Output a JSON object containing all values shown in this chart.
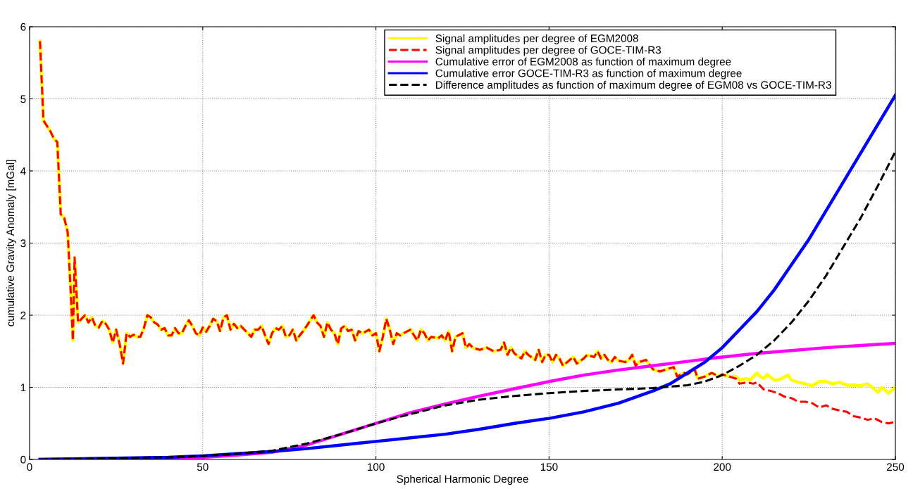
{
  "chart_data": {
    "type": "line",
    "xlabel": "Spherical Harmonic Degree",
    "ylabel": "cumulative Gravity Anomaly [mGal]",
    "xlim": [
      0,
      250
    ],
    "xticks": [
      0,
      50,
      100,
      150,
      200,
      250
    ],
    "ylim": [
      0,
      6
    ],
    "yticks": [
      0,
      1,
      2,
      3,
      4,
      5,
      6
    ],
    "grid": true,
    "legend": "top right",
    "marker": "none",
    "series": [
      {
        "name": "Signal amplitudes per degree of EGM2008",
        "color": "#ffff00",
        "line_style": "solid",
        "x": [
          3,
          4,
          6,
          7,
          8,
          9,
          10,
          11,
          12,
          12.5,
          13,
          14,
          15,
          16,
          17,
          18,
          19,
          20,
          21,
          22,
          23,
          24,
          25,
          26,
          27,
          28,
          29,
          30,
          31,
          32,
          33,
          34,
          35,
          36,
          37,
          38,
          39,
          40,
          41,
          42,
          43,
          44,
          45,
          46,
          47,
          48,
          49,
          50,
          51,
          52,
          53,
          54,
          55,
          56,
          57,
          58,
          59,
          60,
          61,
          62,
          63,
          64,
          65,
          66,
          67,
          68,
          69,
          70,
          71,
          72,
          73,
          74,
          75,
          76,
          77,
          78,
          79,
          80,
          82,
          83,
          84,
          85,
          86,
          87,
          88,
          89,
          90,
          91,
          92,
          93,
          94,
          95,
          96,
          97,
          98,
          99,
          100,
          101,
          102,
          103,
          104,
          105,
          106,
          107,
          108,
          110,
          111,
          112,
          113,
          114,
          115,
          116,
          118,
          119,
          120,
          121,
          122,
          123,
          125,
          126,
          127,
          128,
          130,
          132,
          134,
          136,
          137,
          138,
          139,
          140,
          142,
          143,
          144,
          146,
          147,
          148,
          149,
          150,
          151,
          152,
          153,
          154,
          156,
          157,
          158,
          160,
          161,
          163,
          164,
          165,
          166,
          167,
          168,
          169,
          170,
          172,
          173,
          174,
          175,
          176,
          178,
          180,
          182,
          184,
          186,
          187,
          189,
          190,
          192,
          193,
          195,
          197,
          199,
          200,
          202,
          204,
          205,
          207,
          208,
          210,
          211,
          212,
          213,
          215,
          216,
          217,
          219,
          220,
          222,
          224,
          226,
          228,
          230,
          232,
          234,
          236,
          238,
          240,
          242,
          244,
          245,
          246,
          248,
          250
        ],
        "values": [
          5.8,
          4.7,
          4.55,
          4.45,
          4.4,
          3.4,
          3.35,
          3.15,
          2.2,
          1.65,
          2.8,
          1.9,
          1.95,
          2.0,
          1.9,
          1.97,
          1.85,
          1.83,
          1.92,
          1.88,
          1.8,
          1.62,
          1.8,
          1.6,
          1.33,
          1.75,
          1.7,
          1.73,
          1.7,
          1.7,
          1.82,
          2.0,
          1.97,
          1.9,
          1.87,
          1.8,
          1.82,
          1.72,
          1.72,
          1.82,
          1.75,
          1.75,
          1.85,
          1.93,
          1.85,
          1.75,
          1.72,
          1.83,
          1.77,
          1.85,
          1.95,
          1.92,
          1.78,
          1.97,
          2.0,
          1.8,
          1.88,
          1.82,
          1.85,
          1.8,
          1.75,
          1.7,
          1.8,
          1.8,
          1.85,
          1.72,
          1.6,
          1.75,
          1.82,
          1.8,
          1.85,
          1.7,
          1.72,
          1.8,
          1.65,
          1.72,
          1.78,
          1.85,
          2.0,
          1.9,
          1.85,
          1.7,
          1.9,
          1.8,
          1.75,
          1.6,
          1.82,
          1.85,
          1.78,
          1.8,
          1.65,
          1.78,
          1.75,
          1.77,
          1.8,
          1.72,
          1.75,
          1.5,
          1.7,
          1.95,
          1.8,
          1.6,
          1.75,
          1.72,
          1.75,
          1.8,
          1.72,
          1.65,
          1.8,
          1.75,
          1.65,
          1.7,
          1.68,
          1.72,
          1.65,
          1.78,
          1.5,
          1.7,
          1.75,
          1.55,
          1.6,
          1.55,
          1.52,
          1.55,
          1.5,
          1.52,
          1.62,
          1.45,
          1.55,
          1.47,
          1.4,
          1.5,
          1.45,
          1.38,
          1.52,
          1.35,
          1.45,
          1.45,
          1.35,
          1.45,
          1.4,
          1.3,
          1.38,
          1.42,
          1.33,
          1.4,
          1.45,
          1.42,
          1.5,
          1.4,
          1.45,
          1.38,
          1.35,
          1.42,
          1.37,
          1.35,
          1.38,
          1.45,
          1.3,
          1.35,
          1.38,
          1.25,
          1.22,
          1.25,
          1.28,
          1.15,
          1.2,
          1.18,
          1.25,
          1.12,
          1.15,
          1.2,
          1.15,
          1.18,
          1.15,
          1.15,
          1.1,
          1.12,
          1.1,
          1.2,
          1.15,
          1.12,
          1.18,
          1.1,
          1.1,
          1.12,
          1.17,
          1.1,
          1.07,
          1.05,
          1.02,
          1.08,
          1.08,
          1.05,
          1.07,
          1.03,
          1.03,
          1.02,
          1.05,
          0.97,
          0.93,
          1.0,
          0.92,
          1.0
        ]
      },
      {
        "name": "Signal amplitudes per degree of GOCE-TIM-R3",
        "color": "#ff0000",
        "line_style": "dashed",
        "x": [
          3,
          4,
          6,
          7,
          8,
          9,
          10,
          11,
          12,
          12.5,
          13,
          14,
          15,
          16,
          17,
          18,
          19,
          20,
          21,
          22,
          23,
          24,
          25,
          26,
          27,
          28,
          29,
          30,
          31,
          32,
          33,
          34,
          35,
          36,
          37,
          38,
          39,
          40,
          41,
          42,
          43,
          44,
          45,
          46,
          47,
          48,
          49,
          50,
          51,
          52,
          53,
          54,
          55,
          56,
          57,
          58,
          59,
          60,
          61,
          62,
          63,
          64,
          65,
          66,
          67,
          68,
          69,
          70,
          71,
          72,
          73,
          74,
          75,
          76,
          77,
          78,
          79,
          80,
          82,
          83,
          84,
          85,
          86,
          87,
          88,
          89,
          90,
          91,
          92,
          93,
          94,
          95,
          96,
          97,
          98,
          99,
          100,
          101,
          102,
          103,
          104,
          105,
          106,
          107,
          108,
          110,
          111,
          112,
          113,
          114,
          115,
          116,
          118,
          119,
          120,
          121,
          122,
          123,
          125,
          126,
          127,
          128,
          130,
          132,
          134,
          136,
          137,
          138,
          139,
          140,
          142,
          143,
          144,
          146,
          147,
          148,
          149,
          150,
          151,
          152,
          153,
          154,
          156,
          157,
          158,
          160,
          161,
          163,
          164,
          165,
          166,
          167,
          168,
          169,
          170,
          172,
          173,
          174,
          175,
          176,
          178,
          180,
          182,
          184,
          186,
          187,
          189,
          190,
          192,
          193,
          195,
          197,
          199,
          200,
          202,
          204,
          205,
          207,
          209,
          210,
          212,
          214,
          216,
          218,
          220,
          222,
          224,
          226,
          228,
          230,
          232,
          234,
          236,
          238,
          240,
          242,
          244,
          246,
          248,
          250
        ],
        "values": [
          5.8,
          4.7,
          4.55,
          4.45,
          4.4,
          3.4,
          3.35,
          3.15,
          2.2,
          1.65,
          2.8,
          1.9,
          1.95,
          2.0,
          1.9,
          1.97,
          1.85,
          1.83,
          1.92,
          1.88,
          1.8,
          1.62,
          1.8,
          1.6,
          1.33,
          1.75,
          1.7,
          1.73,
          1.7,
          1.7,
          1.82,
          2.0,
          1.97,
          1.9,
          1.87,
          1.8,
          1.82,
          1.72,
          1.72,
          1.82,
          1.75,
          1.75,
          1.85,
          1.93,
          1.85,
          1.75,
          1.72,
          1.83,
          1.77,
          1.85,
          1.95,
          1.92,
          1.78,
          1.97,
          2.0,
          1.8,
          1.88,
          1.82,
          1.85,
          1.8,
          1.75,
          1.7,
          1.8,
          1.8,
          1.85,
          1.72,
          1.6,
          1.75,
          1.82,
          1.8,
          1.85,
          1.7,
          1.72,
          1.8,
          1.65,
          1.72,
          1.78,
          1.85,
          2.0,
          1.9,
          1.85,
          1.7,
          1.9,
          1.8,
          1.75,
          1.6,
          1.82,
          1.85,
          1.78,
          1.8,
          1.65,
          1.78,
          1.75,
          1.77,
          1.8,
          1.72,
          1.75,
          1.5,
          1.7,
          1.95,
          1.8,
          1.6,
          1.75,
          1.72,
          1.75,
          1.8,
          1.72,
          1.65,
          1.8,
          1.75,
          1.65,
          1.7,
          1.68,
          1.72,
          1.65,
          1.78,
          1.5,
          1.7,
          1.75,
          1.55,
          1.6,
          1.55,
          1.52,
          1.55,
          1.5,
          1.52,
          1.62,
          1.45,
          1.55,
          1.47,
          1.4,
          1.5,
          1.45,
          1.38,
          1.52,
          1.35,
          1.45,
          1.45,
          1.35,
          1.45,
          1.4,
          1.3,
          1.38,
          1.42,
          1.33,
          1.4,
          1.45,
          1.42,
          1.5,
          1.4,
          1.45,
          1.38,
          1.35,
          1.42,
          1.37,
          1.35,
          1.38,
          1.45,
          1.3,
          1.35,
          1.38,
          1.25,
          1.22,
          1.25,
          1.28,
          1.15,
          1.2,
          1.18,
          1.25,
          1.12,
          1.15,
          1.2,
          1.15,
          1.18,
          1.15,
          1.12,
          1.05,
          1.07,
          1.05,
          1.07,
          0.97,
          0.95,
          0.92,
          0.87,
          0.85,
          0.8,
          0.8,
          0.78,
          0.72,
          0.75,
          0.7,
          0.68,
          0.66,
          0.6,
          0.58,
          0.55,
          0.57,
          0.52,
          0.5,
          0.52
        ]
      },
      {
        "name": "Cumulative error of EGM2008 as function of maximum degree",
        "color": "#ff00ff",
        "line_style": "solid",
        "x": [
          3,
          50,
          60,
          70,
          80,
          90,
          100,
          110,
          120,
          130,
          140,
          150,
          160,
          170,
          180,
          190,
          200,
          210,
          220,
          230,
          240,
          250
        ],
        "values": [
          0,
          0.03,
          0.06,
          0.1,
          0.2,
          0.35,
          0.5,
          0.65,
          0.77,
          0.88,
          0.98,
          1.08,
          1.17,
          1.24,
          1.3,
          1.36,
          1.42,
          1.47,
          1.51,
          1.55,
          1.58,
          1.61
        ]
      },
      {
        "name": "Cumulative error GOCE-TIM-R3 as function of maximum degree",
        "color": "#0000ff",
        "line_style": "solid",
        "x": [
          3,
          40,
          50,
          60,
          70,
          80,
          90,
          100,
          110,
          120,
          130,
          140,
          150,
          160,
          170,
          180,
          185,
          190,
          195,
          200,
          205,
          210,
          215,
          220,
          225,
          230,
          235,
          240,
          245,
          250
        ],
        "values": [
          0,
          0.03,
          0.05,
          0.08,
          0.11,
          0.15,
          0.2,
          0.25,
          0.3,
          0.35,
          0.42,
          0.5,
          0.57,
          0.66,
          0.78,
          0.95,
          1.05,
          1.2,
          1.35,
          1.55,
          1.8,
          2.05,
          2.35,
          2.7,
          3.05,
          3.45,
          3.85,
          4.25,
          4.65,
          5.05
        ]
      },
      {
        "name": "Difference amplitudes as function of maximum degree of EGM08 vs GOCE-TIM-R3",
        "color": "#000000",
        "line_style": "dashed",
        "x": [
          3,
          40,
          50,
          60,
          70,
          80,
          90,
          100,
          110,
          120,
          130,
          140,
          150,
          160,
          170,
          180,
          190,
          195,
          200,
          205,
          210,
          215,
          220,
          225,
          230,
          235,
          240,
          245,
          250
        ],
        "values": [
          0,
          0.03,
          0.05,
          0.08,
          0.12,
          0.22,
          0.35,
          0.5,
          0.63,
          0.75,
          0.83,
          0.88,
          0.92,
          0.95,
          0.97,
          0.99,
          1.03,
          1.08,
          1.17,
          1.3,
          1.45,
          1.65,
          1.9,
          2.2,
          2.55,
          2.95,
          3.35,
          3.8,
          4.27
        ]
      }
    ]
  }
}
